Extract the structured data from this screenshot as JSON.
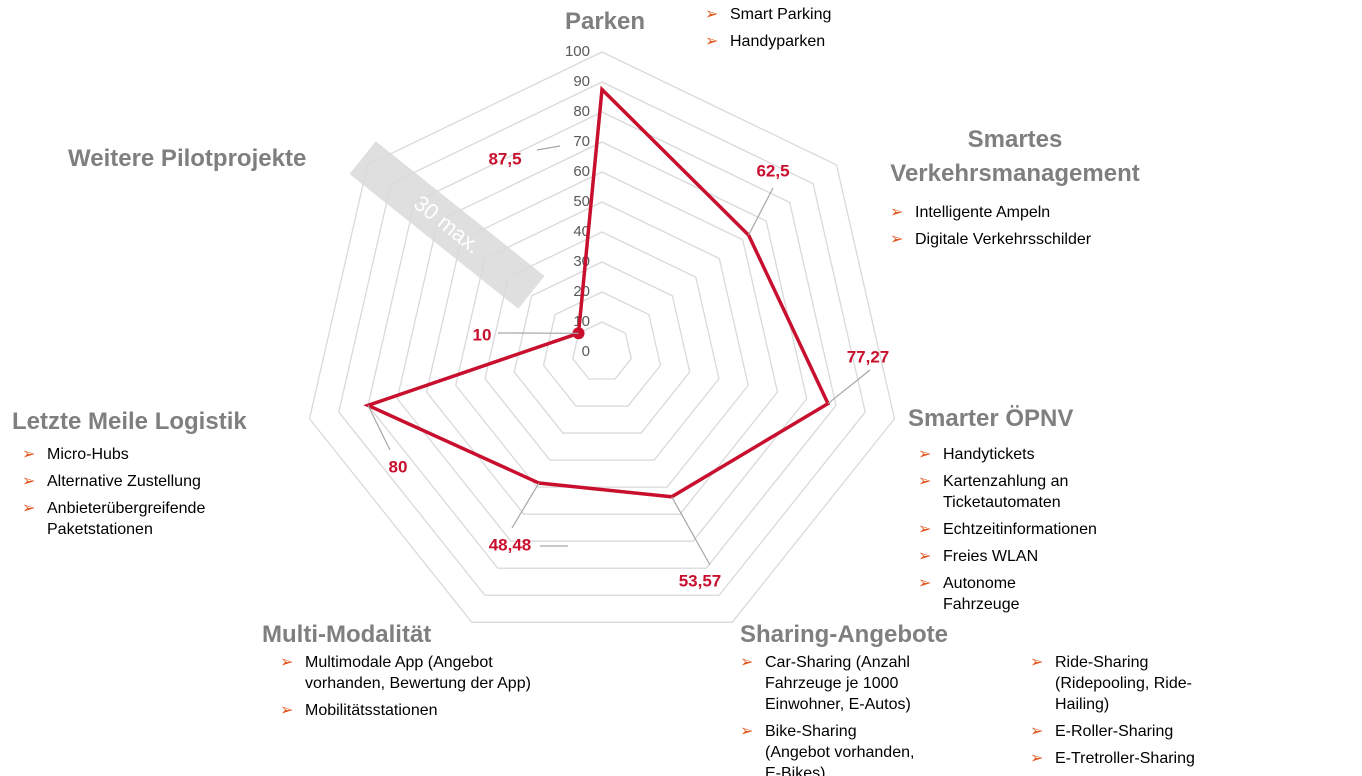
{
  "chart_data": {
    "type": "radar",
    "categories": [
      "Parken",
      "Smartes Verkehrsmanagement",
      "Smarter ÖPNV",
      "Sharing-Angebote",
      "Multi-Modalität",
      "Letzte Meile Logistik",
      "Weitere Pilotprojekte"
    ],
    "category_items": [
      [
        [
          "Smart Parking",
          "Handyparken"
        ]
      ],
      [
        [
          "Intelligente Ampeln",
          "Digitale Verkehrsschilder"
        ]
      ],
      [
        [
          "Handytickets",
          "Kartenzahlung an Ticketautomaten",
          "Echtzeitinformationen",
          "Freies WLAN",
          "Autonome Fahrzeuge"
        ]
      ],
      [
        [
          "Car-Sharing (Anzahl Fahrzeuge je 1000 Einwohner, E-Autos)",
          "Bike-Sharing (Angebot vorhanden, E-Bikes)"
        ],
        [
          "Ride-Sharing (Ridepooling, Ride-Hailing)",
          "E-Roller-Sharing",
          "E-Tretroller-Sharing"
        ]
      ],
      [
        [
          "Multimodale App (Angebot vorhanden, Bewertung der App)",
          "Mobilitätsstationen"
        ]
      ],
      [
        [
          "Micro-Hubs",
          "Alternative Zustellung",
          "Anbieterübergreifende Paketstationen"
        ]
      ],
      []
    ],
    "values": [
      87.5,
      62.5,
      77.27,
      53.57,
      48.48,
      80,
      10
    ],
    "value_labels": [
      "87,5",
      "62,5",
      "77,27",
      "53,57",
      "48,48",
      "80",
      "10"
    ],
    "color": "#c8102e",
    "ylim": [
      0,
      100
    ],
    "yticks": [
      0,
      10,
      20,
      30,
      40,
      50,
      60,
      70,
      80,
      90,
      100
    ],
    "grid": true,
    "annotation": "30 max."
  }
}
